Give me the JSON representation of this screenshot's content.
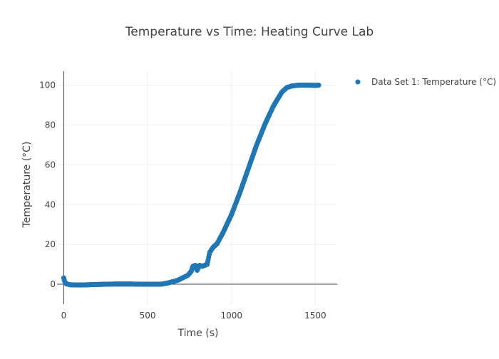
{
  "chart_data": {
    "type": "scatter",
    "title": "Temperature vs Time: Heating Curve Lab",
    "xlabel": "Time (s)",
    "ylabel": "Temperature (°C)",
    "xlim": [
      -40,
      1630
    ],
    "ylim": [
      -10,
      107
    ],
    "x_ticks": [
      0,
      500,
      1000,
      1500
    ],
    "y_ticks": [
      0,
      20,
      40,
      60,
      80,
      100
    ],
    "grid": true,
    "legend_position": "top-right",
    "marker_color": "#1f77b4",
    "series": [
      {
        "name": "Data Set 1: Temperature (°C)",
        "keypoints": [
          [
            0,
            3.2
          ],
          [
            5,
            1.5
          ],
          [
            15,
            0.2
          ],
          [
            40,
            -0.3
          ],
          [
            100,
            -0.4
          ],
          [
            200,
            -0.1
          ],
          [
            300,
            0.1
          ],
          [
            400,
            0.1
          ],
          [
            500,
            0.0
          ],
          [
            580,
            0.0
          ],
          [
            620,
            0.6
          ],
          [
            680,
            2.0
          ],
          [
            740,
            4.5
          ],
          [
            760,
            6.5
          ],
          [
            770,
            9.0
          ],
          [
            785,
            9.5
          ],
          [
            795,
            7.0
          ],
          [
            810,
            9.5
          ],
          [
            825,
            9.0
          ],
          [
            840,
            9.5
          ],
          [
            855,
            10.0
          ],
          [
            870,
            16.0
          ],
          [
            890,
            18.5
          ],
          [
            915,
            20.5
          ],
          [
            950,
            26.0
          ],
          [
            1000,
            35.0
          ],
          [
            1050,
            46.0
          ],
          [
            1100,
            58.0
          ],
          [
            1150,
            70.0
          ],
          [
            1200,
            80.5
          ],
          [
            1250,
            89.5
          ],
          [
            1300,
            96.5
          ],
          [
            1330,
            98.8
          ],
          [
            1360,
            99.6
          ],
          [
            1400,
            100.0
          ],
          [
            1450,
            100.0
          ],
          [
            1500,
            99.9
          ],
          [
            1520,
            100.0
          ]
        ]
      }
    ]
  }
}
